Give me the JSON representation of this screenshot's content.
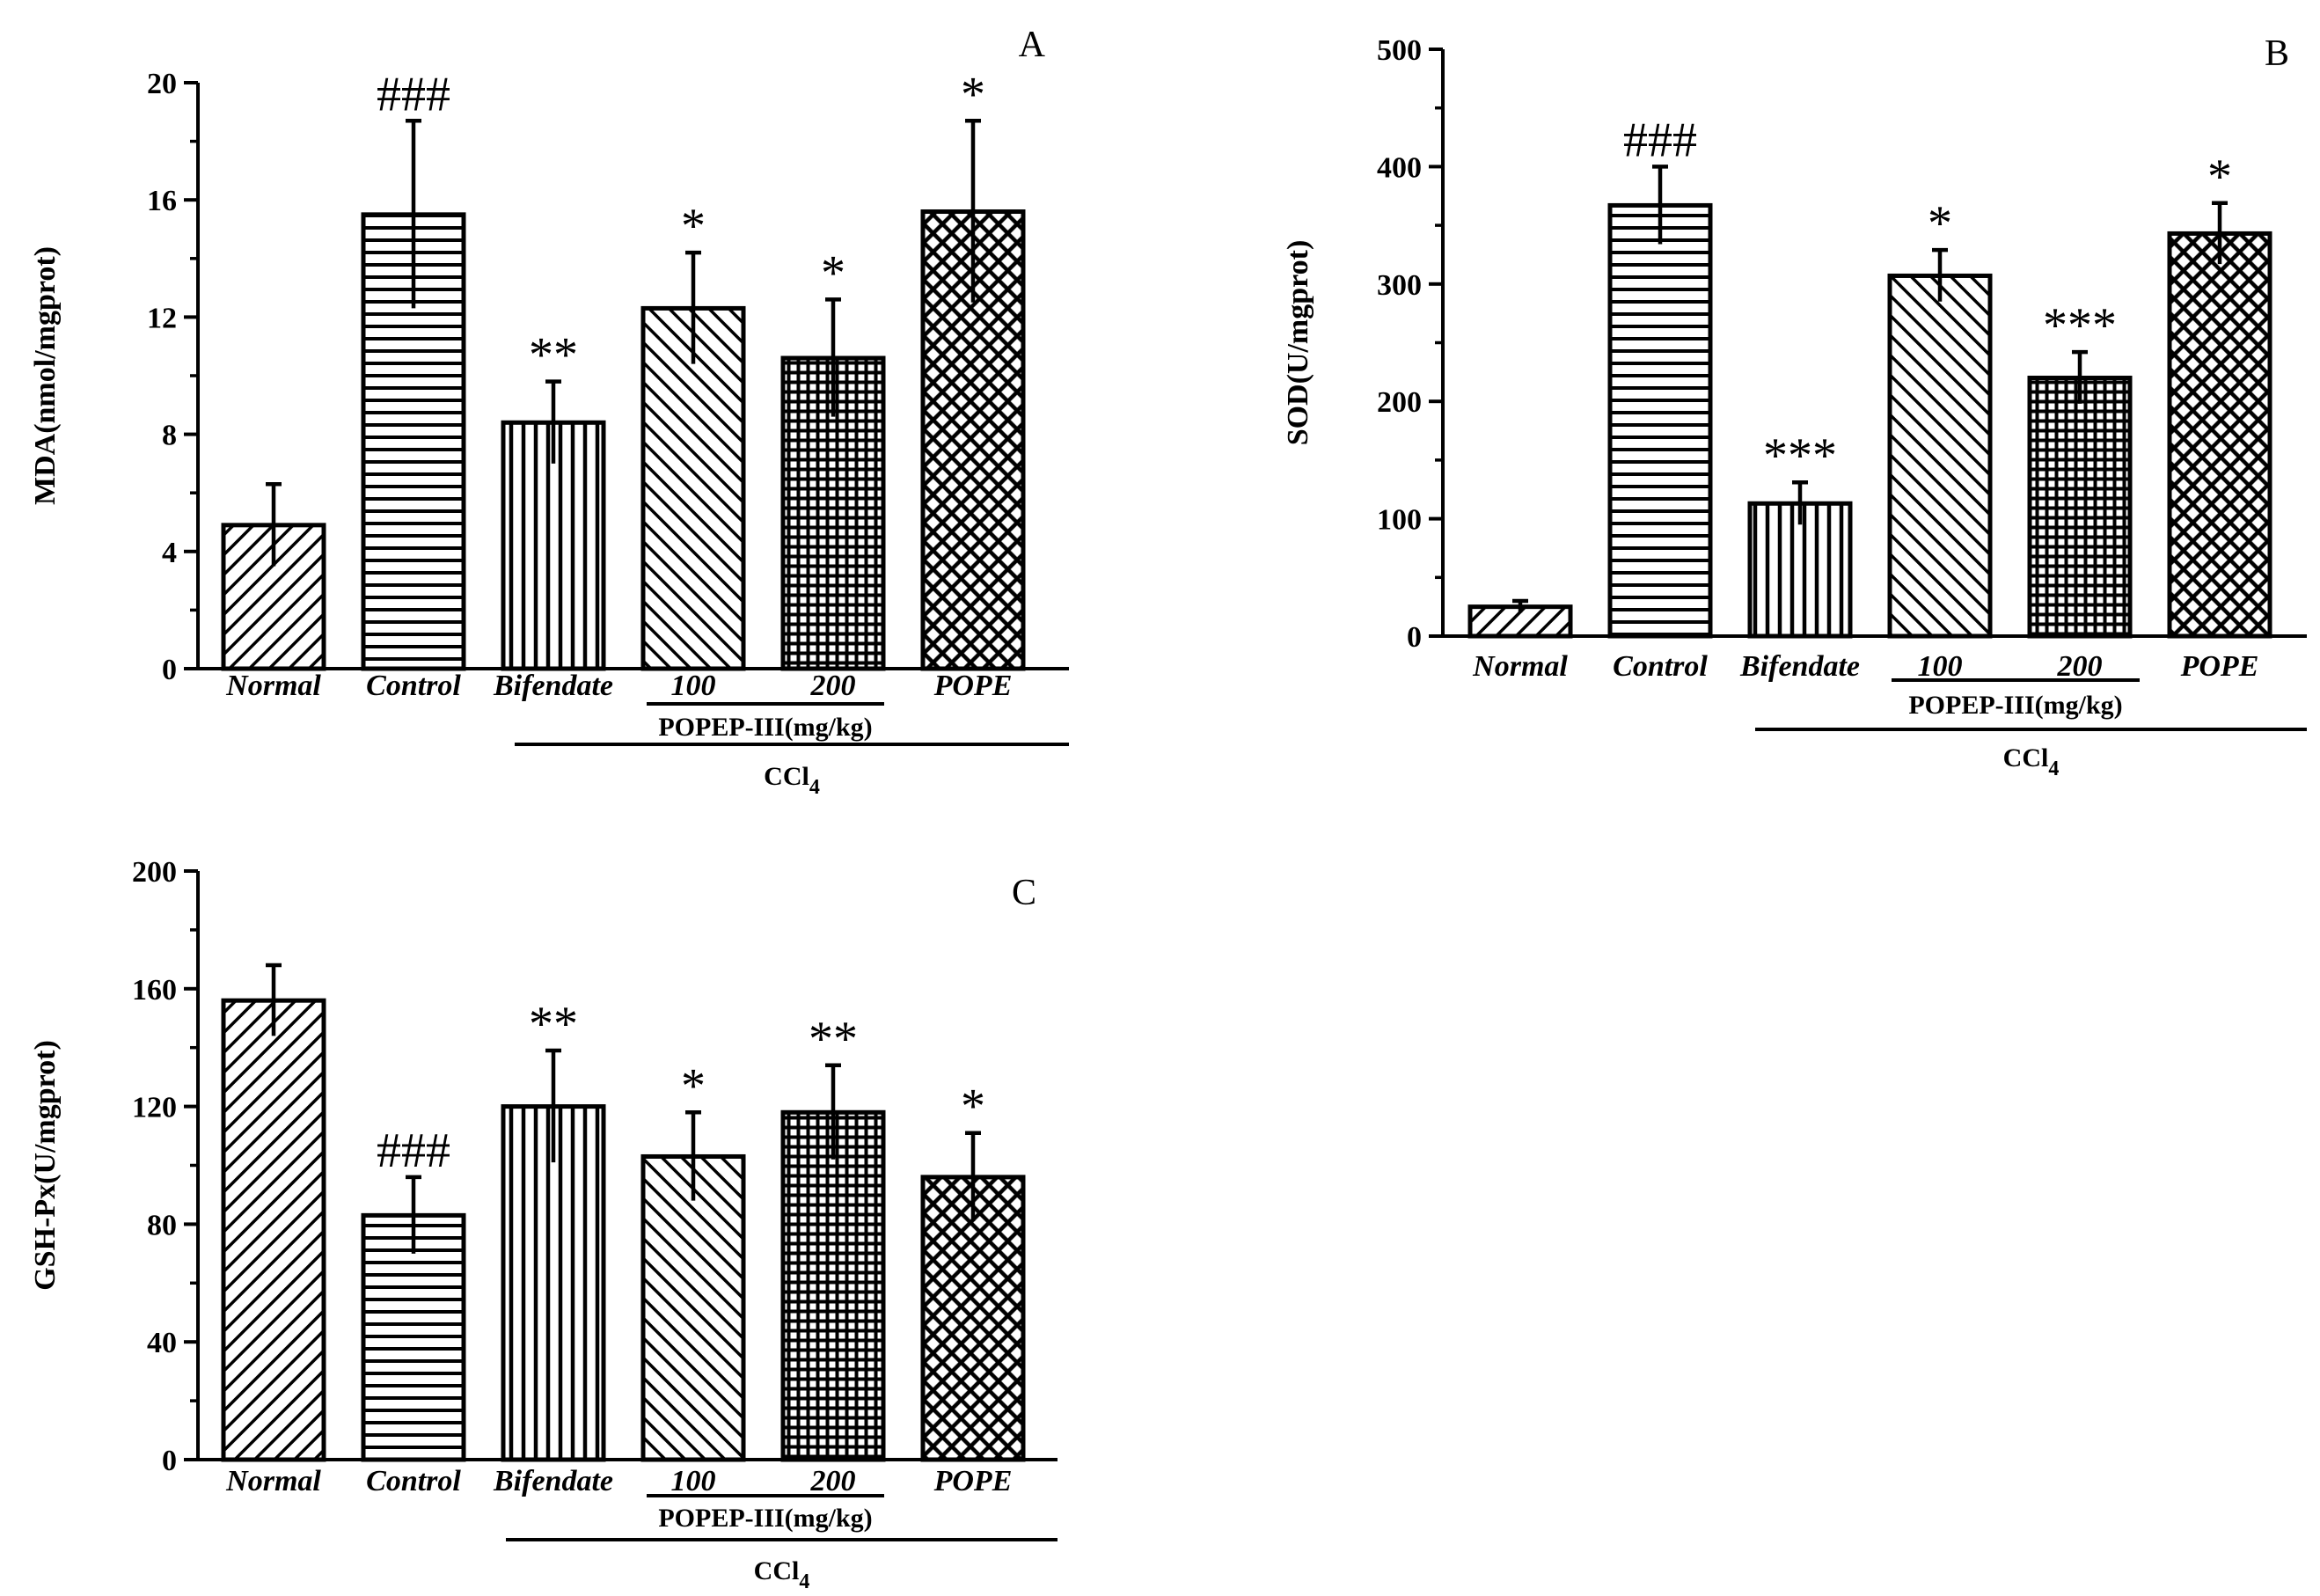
{
  "chart_data": [
    {
      "type": "bar",
      "panel": "A",
      "categories": [
        "Normal",
        "Control",
        "Bifendate",
        "100",
        "200",
        "POPE"
      ],
      "values": [
        4.9,
        15.5,
        8.4,
        12.3,
        10.6,
        15.6
      ],
      "errors": [
        1.4,
        3.2,
        1.4,
        1.9,
        2.0,
        3.1
      ],
      "significance": [
        "",
        "###",
        "**",
        "*",
        "*",
        "*"
      ],
      "patterns": [
        "diag-right",
        "horizontal",
        "vertical",
        "diag-left",
        "grid",
        "crosshatch"
      ],
      "ylabel": "MDA(nmol/mgprot)",
      "ylim": [
        0,
        20
      ],
      "yticks": [
        "0",
        "4",
        "8",
        "12",
        "16",
        "20"
      ],
      "subgroup_label": "POPEP-III(mg/kg)",
      "group_label_main": "CCl",
      "group_label_sub": "4"
    },
    {
      "type": "bar",
      "panel": "B",
      "categories": [
        "Normal",
        "Control",
        "Bifendate",
        "100",
        "200",
        "POPE"
      ],
      "values": [
        25,
        367,
        113,
        307,
        220,
        343
      ],
      "errors": [
        5,
        33,
        18,
        22,
        22,
        26
      ],
      "significance": [
        "",
        "###",
        "***",
        "*",
        "***",
        "*"
      ],
      "patterns": [
        "diag-right",
        "horizontal",
        "vertical",
        "diag-left",
        "grid",
        "crosshatch"
      ],
      "ylabel": "SOD(U/mgprot)",
      "ylim": [
        0,
        500
      ],
      "yticks": [
        "0",
        "100",
        "200",
        "300",
        "400",
        "500"
      ],
      "subgroup_label": "POPEP-III(mg/kg)",
      "group_label_main": "CCl",
      "group_label_sub": "4"
    },
    {
      "type": "bar",
      "panel": "C",
      "categories": [
        "Normal",
        "Control",
        "Bifendate",
        "100",
        "200",
        "POPE"
      ],
      "values": [
        156,
        83,
        120,
        103,
        118,
        96
      ],
      "errors": [
        12,
        13,
        19,
        15,
        16,
        15
      ],
      "significance": [
        "",
        "###",
        "**",
        "*",
        "**",
        "*"
      ],
      "patterns": [
        "diag-right",
        "horizontal",
        "vertical",
        "diag-left",
        "grid",
        "crosshatch"
      ],
      "ylabel": "GSH-Px(U/mgprot)",
      "ylim": [
        0,
        200
      ],
      "yticks": [
        "0",
        "40",
        "80",
        "120",
        "160",
        "200"
      ],
      "subgroup_label": "POPEP-III(mg/kg)",
      "group_label_main": "CCl",
      "group_label_sub": "4"
    }
  ]
}
